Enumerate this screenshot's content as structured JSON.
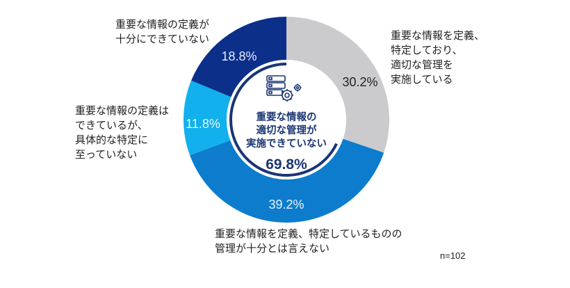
{
  "chart_data": {
    "type": "pie",
    "variant": "donut",
    "title": "",
    "start_angle_deg": 0,
    "direction": "clockwise",
    "slices": [
      {
        "label": "重要な情報を定義、特定しており、適切な管理を実施している",
        "value": 30.2,
        "display": "30.2%",
        "color": "#cbcbcd"
      },
      {
        "label": "重要な情報を定義、特定しているものの管理が十分とは言えない",
        "value": 39.2,
        "display": "39.2%",
        "color": "#0d7ccd"
      },
      {
        "label": "重要な情報の定義はできているが、具体的な特定に至っていない",
        "value": 11.8,
        "display": "11.8%",
        "color": "#12b0ec"
      },
      {
        "label": "重要な情報の定義が十分にできていない",
        "value": 18.8,
        "display": "18.8%",
        "color": "#0c2f8a"
      }
    ],
    "center_annotation": {
      "text_lines": [
        "重要な情報の",
        "適切な管理が",
        "実施できていない"
      ],
      "value": "69.8%",
      "color": "#1a3574"
    },
    "sample_size": "n=102"
  },
  "labels": {
    "slice0": "重要な情報を定義、\n特定しており、\n適切な管理を\n実施している",
    "slice1": "重要な情報を定義、特定しているものの\n管理が十分とは言えない",
    "slice2": "重要な情報の定義は\nできているが、\n具体的な特定に\n至っていない",
    "slice3": "重要な情報の定義が\n十分にできていない"
  },
  "percent_labels": {
    "slice0": "30.2%",
    "slice1": "39.2%",
    "slice2": "11.8%",
    "slice3": "18.8%"
  },
  "center": {
    "line1": "重要な情報の",
    "line2": "適切な管理が",
    "line3": "実施できていない",
    "value": "69.8%",
    "icon": "server-gear-icon"
  },
  "footer": {
    "n": "n=102"
  }
}
